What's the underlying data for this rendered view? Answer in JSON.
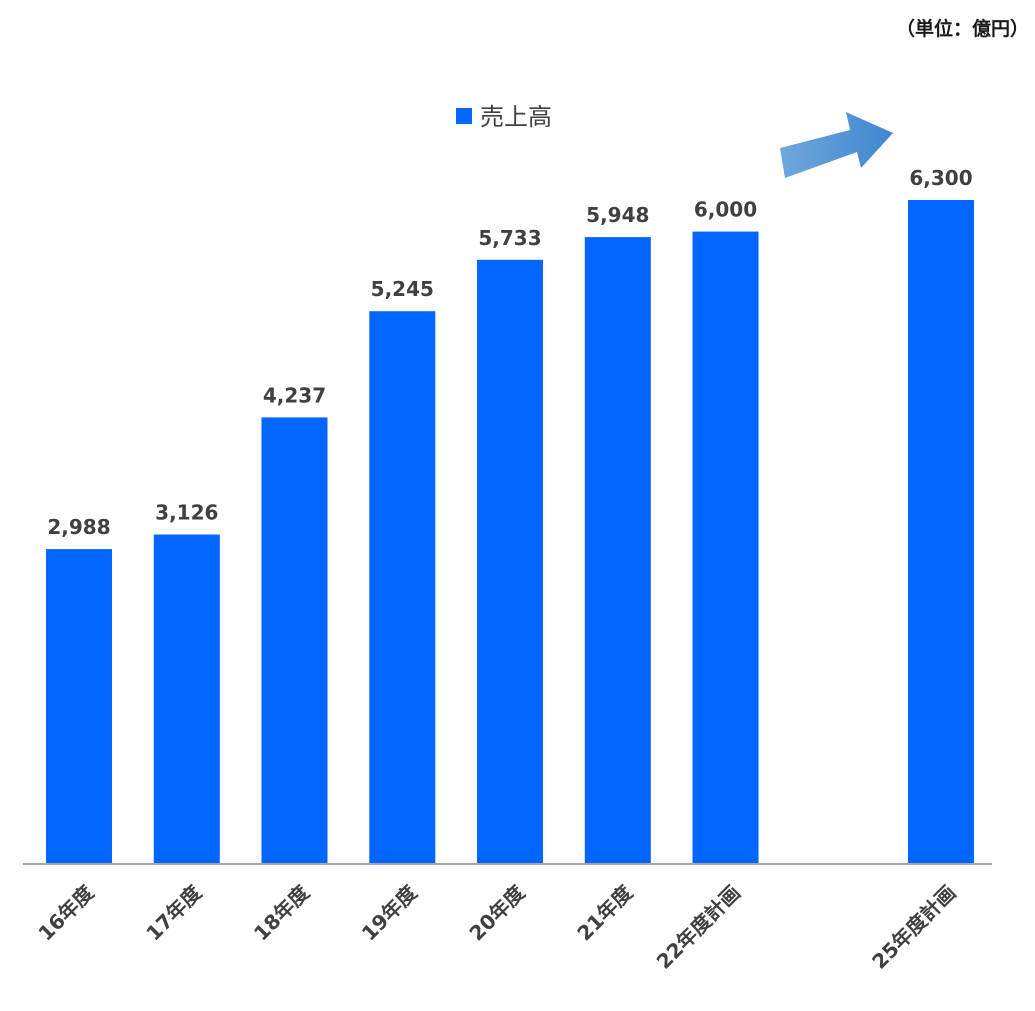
{
  "unit_label": "（単位：億円）",
  "colors": {
    "bar": "#0066FF",
    "arrow": "#4A90D9",
    "axis": "#A6A6A6",
    "text": "#404040"
  },
  "chart_data": {
    "type": "bar",
    "categories": [
      "16年度",
      "17年度",
      "18年度",
      "19年度",
      "20年度",
      "21年度",
      "22年度計画",
      "",
      "25年度計画"
    ],
    "series": [
      {
        "name": "売上高",
        "values": [
          2988,
          3126,
          4237,
          5245,
          5733,
          5948,
          6000,
          null,
          6300
        ]
      }
    ],
    "data_labels": [
      "2,988",
      "3,126",
      "4,237",
      "5,245",
      "5,733",
      "5,948",
      "6,000",
      "",
      "6,300"
    ],
    "title": "",
    "xlabel": "",
    "ylabel": "",
    "ylim": [
      0,
      6300
    ],
    "grid": false,
    "legend": "top-center",
    "annotation": "arrow-up-right"
  }
}
